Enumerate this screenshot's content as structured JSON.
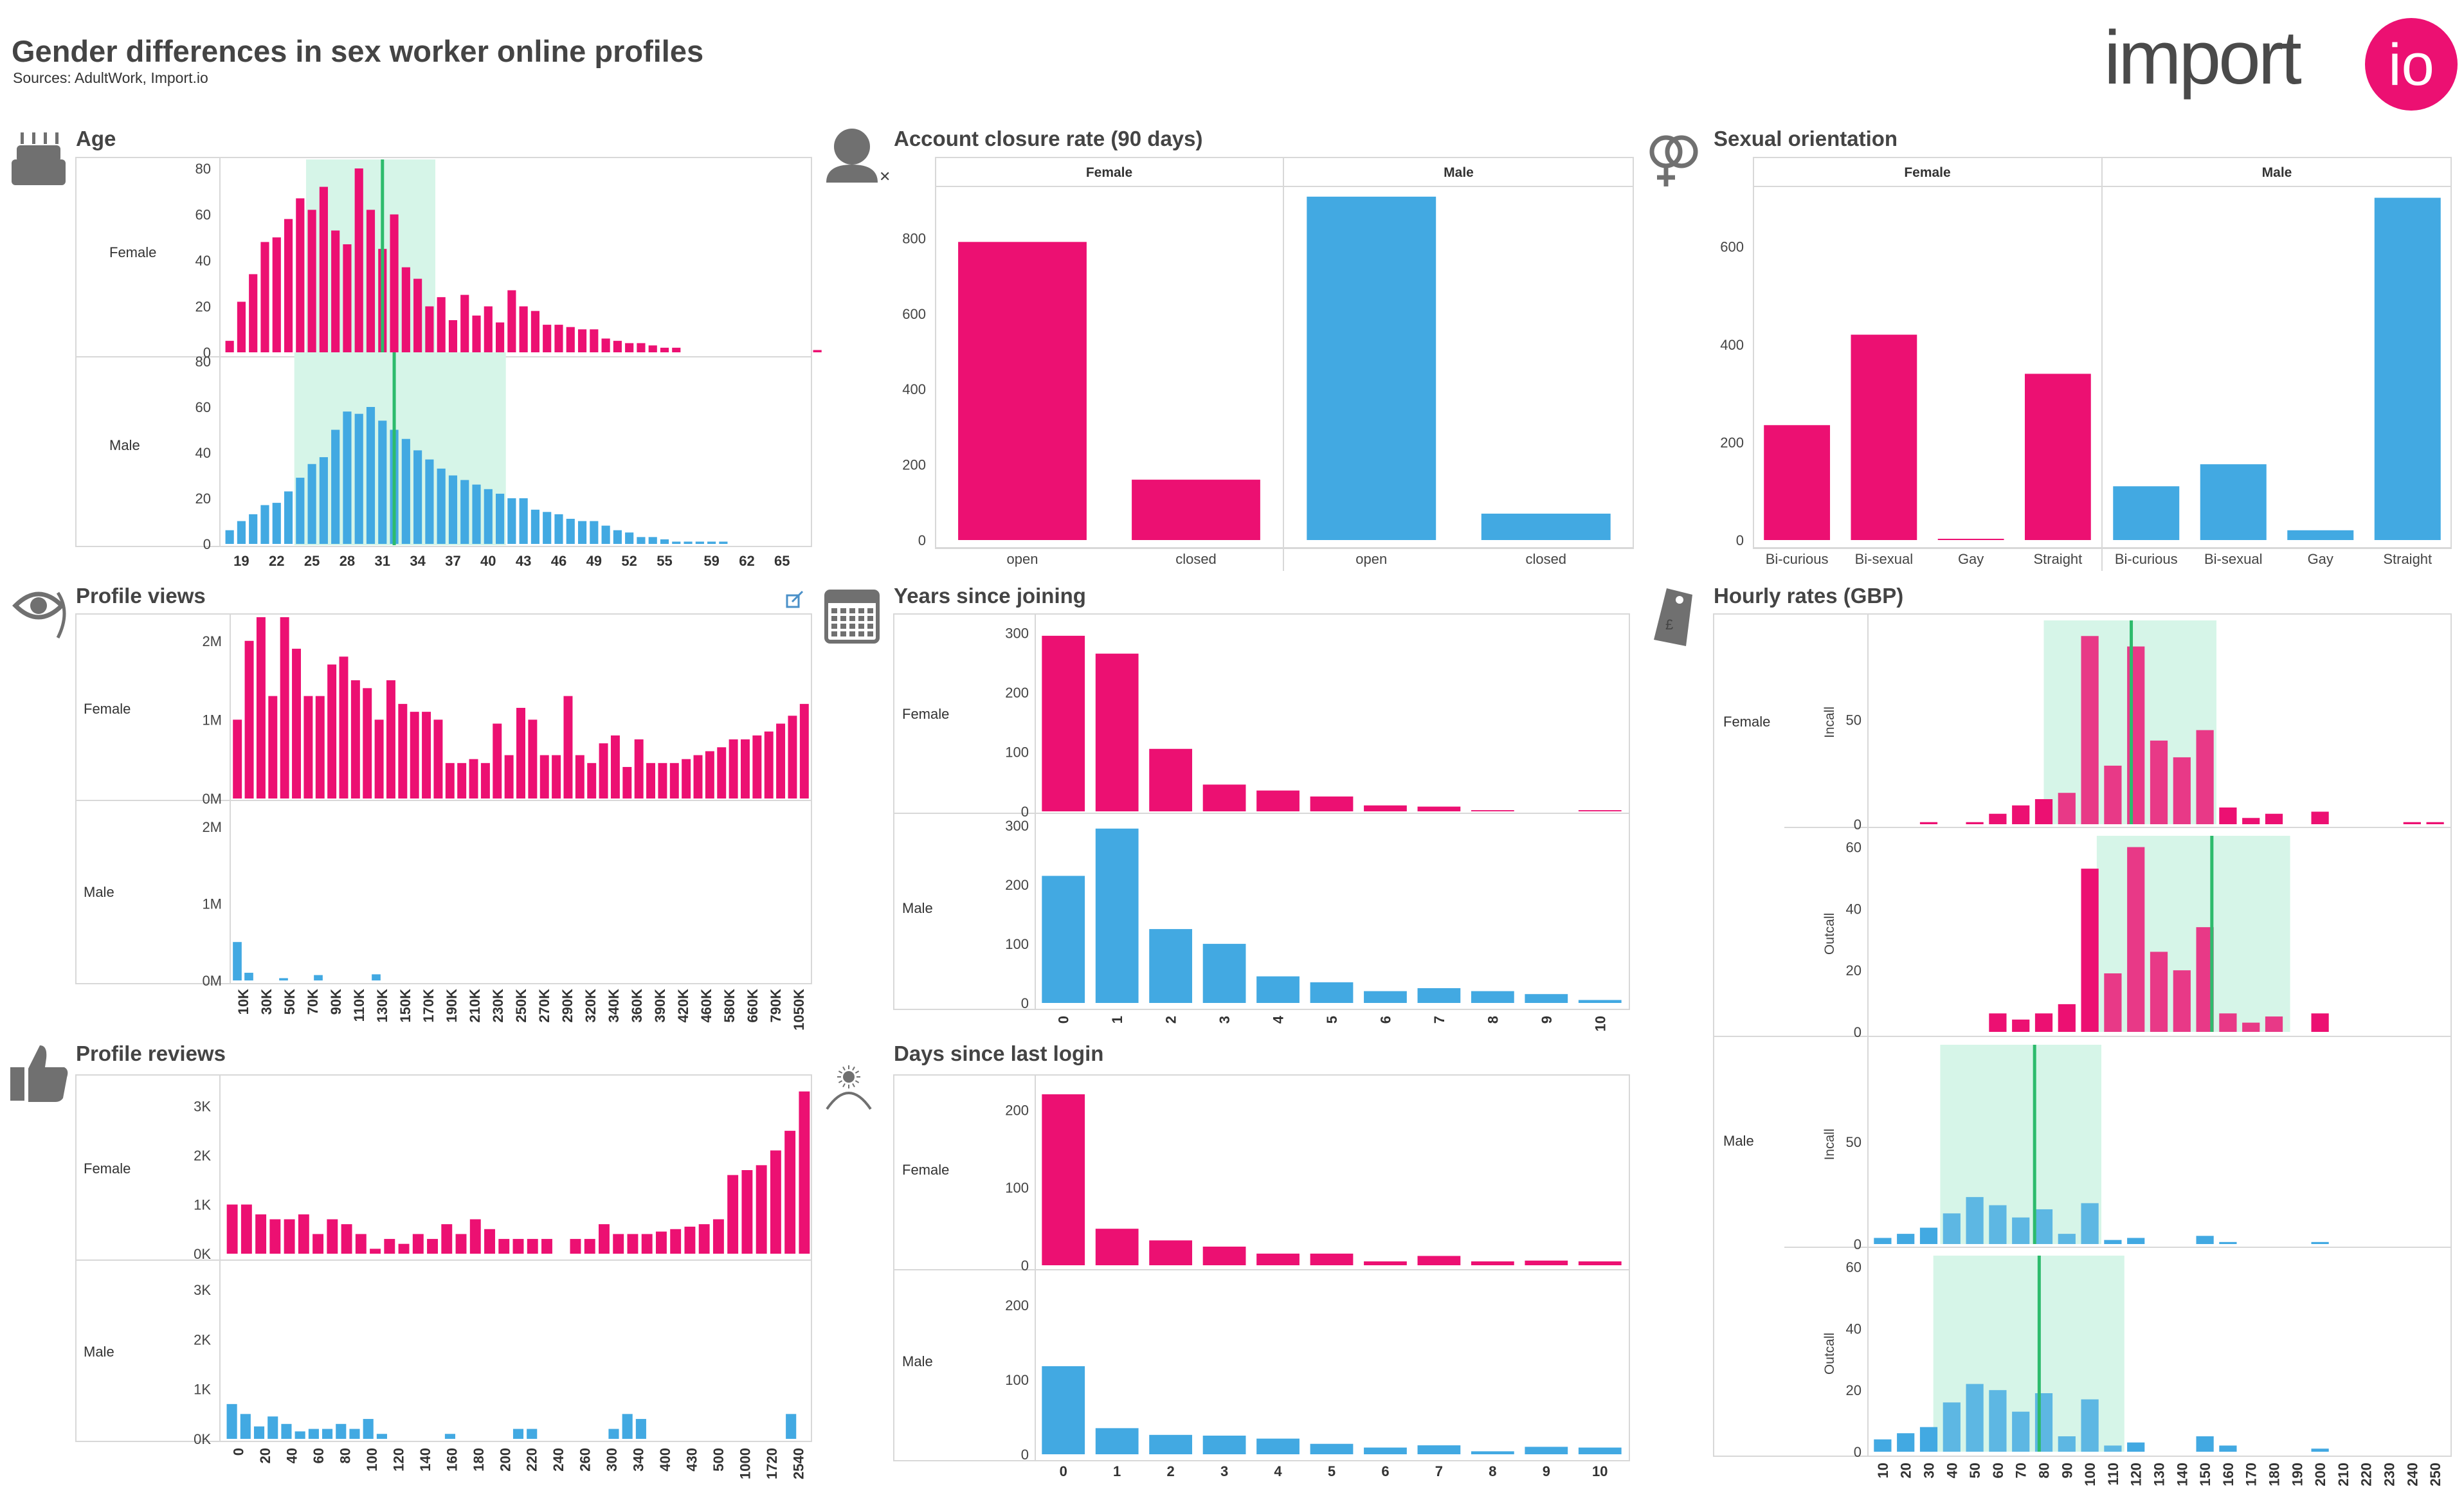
{
  "header": {
    "title": "Gender differences in sex worker online profiles",
    "sources": "Sources: AdultWork, Import.io",
    "logo_text": "import",
    "logo_badge": "io"
  },
  "colors": {
    "female": "#ec1072",
    "male": "#42a9e2",
    "band": "#d6f5e8",
    "mean_line": "#2dbb6c",
    "icon": "#707070"
  },
  "icons": [
    "cake-icon",
    "person-x-icon",
    "gender-symbols-icon",
    "eye-icon",
    "calendar-icon",
    "price-tag-icon",
    "thumbs-up-icon",
    "sun-horizon-icon",
    "external-link-icon"
  ],
  "chart_data": [
    {
      "id": "age",
      "type": "bar",
      "title": "Age",
      "rows": [
        "Female",
        "Male"
      ],
      "x_start": 18,
      "x_step": 1,
      "tick_labels": [
        "19",
        "22",
        "25",
        "28",
        "31",
        "34",
        "37",
        "40",
        "43",
        "46",
        "49",
        "52",
        "55",
        "59",
        "62",
        "65"
      ],
      "ylim": [
        0,
        80
      ],
      "yticks": [
        0,
        20,
        40,
        60,
        80
      ],
      "series": [
        {
          "name": "Female",
          "band": [
            25,
            36
          ],
          "mean": 31,
          "values": [
            5,
            22,
            34,
            48,
            50,
            58,
            67,
            62,
            72,
            53,
            47,
            80,
            62,
            45,
            60,
            37,
            32,
            20,
            24,
            14,
            25,
            16,
            20,
            13,
            27,
            20,
            18,
            12,
            12,
            11,
            10,
            10,
            6,
            5,
            4,
            4,
            3,
            2,
            2,
            0,
            0,
            0,
            0,
            0,
            0,
            0,
            0,
            0,
            0,
            0,
            1
          ]
        },
        {
          "name": "Male",
          "band": [
            24,
            42
          ],
          "mean": 32,
          "values": [
            6,
            10,
            13,
            17,
            18,
            23,
            29,
            35,
            38,
            50,
            58,
            57,
            60,
            54,
            50,
            46,
            41,
            37,
            33,
            30,
            28,
            26,
            24,
            22,
            20,
            20,
            15,
            14,
            13,
            11,
            10,
            10,
            8,
            6,
            5,
            3,
            3,
            2,
            1,
            1,
            1,
            1,
            1,
            0,
            0,
            0,
            0,
            0,
            0
          ]
        }
      ]
    },
    {
      "id": "profile_views",
      "type": "bar",
      "title": "Profile views",
      "rows": [
        "Female",
        "Male"
      ],
      "tick_labels": [
        "10K",
        "30K",
        "50K",
        "70K",
        "90K",
        "110K",
        "130K",
        "150K",
        "170K",
        "190K",
        "210K",
        "230K",
        "250K",
        "270K",
        "290K",
        "320K",
        "340K",
        "360K",
        "390K",
        "420K",
        "460K",
        "580K",
        "660K",
        "790K",
        "1050K"
      ],
      "ylim": [
        0,
        2300000
      ],
      "yticks_labels": [
        "0M",
        "1M",
        "2M"
      ],
      "yticks": [
        0,
        1000000,
        2000000
      ],
      "series": [
        {
          "name": "Female",
          "values": [
            1000000,
            2000000,
            2300000,
            1300000,
            2300000,
            1900000,
            1300000,
            1300000,
            1700000,
            1800000,
            1500000,
            1400000,
            1000000,
            1500000,
            1200000,
            1100000,
            1100000,
            1000000,
            450000,
            450000,
            500000,
            450000,
            950000,
            550000,
            1150000,
            1000000,
            550000,
            550000,
            1300000,
            550000,
            450000,
            700000,
            800000,
            400000,
            750000,
            450000,
            450000,
            450000,
            500000,
            550000,
            600000,
            650000,
            750000,
            750000,
            800000,
            850000,
            950000,
            1050000,
            1200000
          ]
        },
        {
          "name": "Male",
          "values": [
            500000,
            100000,
            0,
            0,
            30000,
            0,
            0,
            70000,
            0,
            0,
            0,
            0,
            80000,
            0,
            0,
            0,
            0,
            0,
            0,
            0,
            0,
            0,
            0,
            0,
            0,
            0,
            0,
            0,
            0,
            0,
            0,
            0,
            0,
            0,
            0,
            0,
            0,
            0,
            0,
            0,
            0,
            0,
            0,
            0,
            0,
            0,
            0,
            0,
            0,
            0
          ]
        }
      ]
    },
    {
      "id": "profile_reviews",
      "type": "bar",
      "title": "Profile reviews",
      "rows": [
        "Female",
        "Male"
      ],
      "tick_labels": [
        "0",
        "20",
        "40",
        "60",
        "80",
        "100",
        "120",
        "140",
        "160",
        "180",
        "200",
        "220",
        "240",
        "260",
        "300",
        "340",
        "400",
        "430",
        "500",
        "1000",
        "1720",
        "2540"
      ],
      "ylim": [
        0,
        3400
      ],
      "yticks_labels": [
        "0K",
        "1K",
        "2K",
        "3K"
      ],
      "yticks": [
        0,
        1000,
        2000,
        3000
      ],
      "series": [
        {
          "name": "Female",
          "values": [
            1000,
            1000,
            800,
            700,
            700,
            800,
            400,
            700,
            600,
            400,
            100,
            300,
            200,
            400,
            300,
            600,
            400,
            700,
            500,
            300,
            300,
            300,
            300,
            0,
            300,
            300,
            600,
            400,
            400,
            400,
            450,
            500,
            550,
            600,
            700,
            1600,
            1700,
            1800,
            2100,
            2500,
            3300
          ]
        },
        {
          "name": "Male",
          "values": [
            700,
            500,
            250,
            450,
            300,
            150,
            200,
            200,
            300,
            200,
            400,
            100,
            0,
            0,
            0,
            0,
            100,
            0,
            0,
            0,
            0,
            200,
            200,
            0,
            0,
            0,
            0,
            0,
            200,
            500,
            400,
            0,
            0,
            0,
            0,
            0,
            0,
            0,
            0,
            0,
            0,
            500,
            0
          ]
        }
      ]
    },
    {
      "id": "account_closure",
      "type": "bar",
      "title": "Account closure rate (90 days)",
      "panels": [
        "Female",
        "Male"
      ],
      "categories": [
        "open",
        "closed"
      ],
      "ylim": [
        0,
        920
      ],
      "yticks": [
        0,
        200,
        400,
        600,
        800
      ],
      "series": [
        {
          "name": "Female",
          "values": [
            790,
            160
          ]
        },
        {
          "name": "Male",
          "values": [
            910,
            70
          ]
        }
      ]
    },
    {
      "id": "years_since_joining",
      "type": "bar",
      "title": "Years since joining",
      "rows": [
        "Female",
        "Male"
      ],
      "categories": [
        "0",
        "1",
        "2",
        "3",
        "4",
        "5",
        "6",
        "7",
        "8",
        "9",
        "10"
      ],
      "series": [
        {
          "name": "Female",
          "ylim": [
            0,
            310
          ],
          "yticks": [
            0,
            100,
            200,
            300
          ],
          "values": [
            295,
            265,
            105,
            45,
            35,
            25,
            10,
            8,
            2,
            0,
            2
          ]
        },
        {
          "name": "Male",
          "ylim": [
            0,
            310
          ],
          "yticks": [
            0,
            100,
            200,
            300
          ],
          "values": [
            215,
            295,
            125,
            100,
            45,
            35,
            20,
            25,
            20,
            15,
            5
          ]
        }
      ]
    },
    {
      "id": "days_since_login",
      "type": "bar",
      "title": "Days since last login",
      "rows": [
        "Female",
        "Male"
      ],
      "categories": [
        "0",
        "1",
        "2",
        "3",
        "4",
        "5",
        "6",
        "7",
        "8",
        "9",
        "10"
      ],
      "series": [
        {
          "name": "Female",
          "ylim": [
            0,
            230
          ],
          "yticks": [
            0,
            100,
            200
          ],
          "values": [
            220,
            47,
            32,
            24,
            15,
            15,
            5,
            12,
            5,
            6,
            5
          ]
        },
        {
          "name": "Male",
          "ylim": [
            0,
            230
          ],
          "yticks": [
            0,
            100,
            200
          ],
          "values": [
            118,
            35,
            26,
            25,
            21,
            14,
            9,
            12,
            4,
            10,
            9
          ]
        }
      ]
    },
    {
      "id": "sexual_orientation",
      "type": "bar",
      "title": "Sexual orientation",
      "panels": [
        "Female",
        "Male"
      ],
      "categories": [
        "Bi-curious",
        "Bi-sexual",
        "Gay",
        "Straight"
      ],
      "ylim": [
        0,
        710
      ],
      "yticks": [
        0,
        200,
        400,
        600
      ],
      "series": [
        {
          "name": "Female",
          "values": [
            235,
            420,
            2,
            340
          ]
        },
        {
          "name": "Male",
          "values": [
            110,
            155,
            20,
            700
          ]
        }
      ]
    },
    {
      "id": "hourly_rates",
      "type": "bar",
      "title": "Hourly rates (GBP)",
      "rows": [
        "Female",
        "Male"
      ],
      "sub_rows": [
        "Incall",
        "Outcall"
      ],
      "x": [
        10,
        20,
        30,
        40,
        50,
        60,
        70,
        80,
        90,
        100,
        110,
        120,
        130,
        140,
        150,
        160,
        170,
        180,
        190,
        200,
        210,
        220,
        230,
        240,
        250
      ],
      "tick_labels": [
        "10",
        "20",
        "30",
        "40",
        "50",
        "60",
        "70",
        "80",
        "90",
        "100",
        "110",
        "120",
        "130",
        "140",
        "150",
        "160",
        "170",
        "180",
        "190",
        "200",
        "210",
        "220",
        "230",
        "240",
        "250"
      ],
      "series": [
        {
          "name": "Female Incall",
          "ylim": [
            0,
            95
          ],
          "yticks": [
            0,
            50
          ],
          "band": [
            85,
            160
          ],
          "mean": 118,
          "values": [
            0,
            0,
            1,
            0,
            1,
            5,
            9,
            12,
            15,
            90,
            28,
            85,
            40,
            32,
            45,
            8,
            3,
            5,
            0,
            6,
            0,
            0,
            0,
            1,
            1
          ]
        },
        {
          "name": "Female Outcall",
          "ylim": [
            0,
            62
          ],
          "yticks": [
            0,
            20,
            40,
            60
          ],
          "band": [
            108,
            192
          ],
          "mean": 153,
          "values": [
            0,
            0,
            0,
            0,
            0,
            6,
            4,
            6,
            9,
            53,
            19,
            60,
            26,
            20,
            34,
            6,
            3,
            5,
            0,
            6,
            0,
            0,
            0,
            0,
            0
          ]
        },
        {
          "name": "Male Incall",
          "ylim": [
            0,
            95
          ],
          "yticks": [
            0,
            50
          ],
          "band": [
            40,
            110
          ],
          "mean": 76,
          "values": [
            3,
            5,
            8,
            15,
            23,
            19,
            13,
            17,
            5,
            20,
            2,
            3,
            0,
            0,
            4,
            1,
            0,
            0,
            0,
            1,
            0,
            0,
            0,
            0,
            0
          ]
        },
        {
          "name": "Male Outcall",
          "ylim": [
            0,
            62
          ],
          "yticks": [
            0,
            20,
            40,
            60
          ],
          "band": [
            37,
            120
          ],
          "mean": 78,
          "values": [
            4,
            6,
            8,
            16,
            22,
            20,
            13,
            19,
            5,
            17,
            2,
            3,
            0,
            0,
            5,
            2,
            0,
            0,
            0,
            1,
            0,
            0,
            0,
            0,
            0
          ]
        }
      ]
    }
  ]
}
